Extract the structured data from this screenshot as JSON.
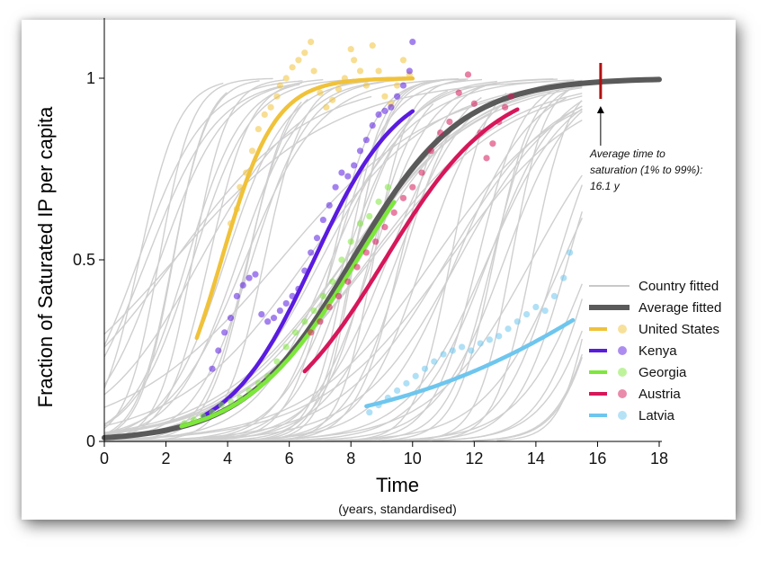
{
  "chart_data": {
    "type": "line",
    "xlabel": "Time",
    "xlabel_sub": "(years, standardised)",
    "ylabel": "Fraction of Saturated IP per capita",
    "xlim": [
      0,
      18
    ],
    "ylim": [
      0,
      1.12
    ],
    "x_ticks": [
      "0",
      "2",
      "4",
      "6",
      "8",
      "10",
      "12",
      "14",
      "16",
      "18"
    ],
    "x_tick_values": [
      0,
      2,
      4,
      6,
      8,
      10,
      12,
      14,
      16,
      18
    ],
    "y_ticks": [
      "0",
      "0.5",
      "1"
    ],
    "y_tick_values": [
      0,
      0.5,
      1
    ],
    "grid": false,
    "legend_position": "bottom-right",
    "legend": [
      {
        "label": "Country fitted",
        "color": "#c8c8c8",
        "dots": false
      },
      {
        "label": "Average fitted",
        "color": "#5a5a5a",
        "dots": false
      },
      {
        "label": "United States",
        "color": "#f0c23a",
        "dots": true
      },
      {
        "label": "Kenya",
        "color": "#5a1be0",
        "dots": true
      },
      {
        "label": "Georgia",
        "color": "#7de83a",
        "dots": true
      },
      {
        "label": "Austria",
        "color": "#d6175a",
        "dots": true
      },
      {
        "label": "Latvia",
        "color": "#6ec6ee",
        "dots": true
      }
    ],
    "annotation": {
      "lines": [
        "Average time to",
        "saturation (1% to 99%):",
        "16.1 y"
      ],
      "marker_x": 16.1,
      "marker_color": "#b01010"
    },
    "average_fitted": {
      "name": "Average fitted",
      "color": "#5a5a5a",
      "midpoint": 8.05,
      "rate": 0.57,
      "x_range": [
        0,
        18
      ]
    },
    "series": [
      {
        "name": "United States",
        "color": "#f0c23a",
        "midpoint": 3.8,
        "rate": 1.15,
        "fit_range": [
          3.0,
          10.0
        ],
        "points_x": [
          4.1,
          4.3,
          4.4,
          4.6,
          4.8,
          5.0,
          5.2,
          5.4,
          5.6,
          5.7,
          5.9,
          6.1,
          6.3,
          6.5,
          6.7,
          6.8,
          7.0,
          7.2,
          7.4,
          7.6,
          7.8,
          8.0,
          8.1,
          8.3,
          8.5,
          8.7,
          8.9,
          9.1,
          9.3,
          9.5,
          9.7,
          9.9
        ],
        "points_y": [
          0.6,
          0.64,
          0.7,
          0.74,
          0.8,
          0.86,
          0.9,
          0.92,
          0.95,
          0.98,
          1.0,
          1.03,
          1.05,
          1.07,
          1.1,
          1.02,
          0.96,
          0.92,
          0.94,
          0.97,
          1.0,
          1.08,
          1.05,
          1.02,
          0.98,
          1.09,
          1.02,
          0.95,
          0.93,
          0.98,
          1.05,
          1.01
        ]
      },
      {
        "name": "Kenya",
        "color": "#5a1be0",
        "midpoint": 6.8,
        "rate": 0.72,
        "fit_range": [
          3.2,
          10.0
        ],
        "points_x": [
          3.5,
          3.7,
          3.9,
          4.1,
          4.3,
          4.5,
          4.7,
          4.9,
          5.1,
          5.3,
          5.5,
          5.7,
          5.9,
          6.1,
          6.3,
          6.5,
          6.7,
          6.9,
          7.1,
          7.3,
          7.5,
          7.7,
          7.9,
          8.1,
          8.3,
          8.5,
          8.7,
          8.9,
          9.1,
          9.3,
          9.5,
          9.7,
          9.9,
          10.0
        ],
        "points_y": [
          0.2,
          0.25,
          0.3,
          0.34,
          0.4,
          0.43,
          0.45,
          0.46,
          0.35,
          0.33,
          0.34,
          0.36,
          0.38,
          0.4,
          0.42,
          0.47,
          0.52,
          0.56,
          0.61,
          0.65,
          0.7,
          0.74,
          0.73,
          0.76,
          0.8,
          0.83,
          0.87,
          0.9,
          0.91,
          0.92,
          0.95,
          0.98,
          1.02,
          1.1
        ]
      },
      {
        "name": "Georgia",
        "color": "#7de83a",
        "midpoint": 8.2,
        "rate": 0.55,
        "fit_range": [
          2.5,
          9.4
        ],
        "points_x": [
          2.6,
          2.9,
          3.2,
          3.5,
          3.8,
          4.1,
          4.4,
          4.7,
          5.0,
          5.3,
          5.6,
          5.9,
          6.2,
          6.5,
          6.8,
          7.1,
          7.4,
          7.7,
          8.0,
          8.3,
          8.6,
          8.9,
          9.2
        ],
        "points_y": [
          0.05,
          0.06,
          0.07,
          0.08,
          0.1,
          0.11,
          0.12,
          0.14,
          0.16,
          0.18,
          0.22,
          0.26,
          0.3,
          0.33,
          0.36,
          0.4,
          0.44,
          0.5,
          0.55,
          0.6,
          0.62,
          0.66,
          0.7
        ]
      },
      {
        "name": "Austria",
        "color": "#d6175a",
        "midpoint": 9.1,
        "rate": 0.55,
        "fit_range": [
          6.5,
          13.4
        ],
        "points_x": [
          6.7,
          7.0,
          7.3,
          7.6,
          7.9,
          8.2,
          8.5,
          8.8,
          9.1,
          9.4,
          9.7,
          10.0,
          10.3,
          10.6,
          10.9,
          11.2,
          11.5,
          11.8,
          12.0,
          12.2,
          12.4,
          12.6,
          12.8,
          13.0,
          13.2
        ],
        "points_y": [
          0.3,
          0.33,
          0.37,
          0.4,
          0.44,
          0.48,
          0.52,
          0.55,
          0.59,
          0.63,
          0.67,
          0.7,
          0.74,
          0.8,
          0.85,
          0.88,
          0.96,
          1.01,
          0.93,
          0.85,
          0.78,
          0.82,
          0.88,
          0.92,
          0.95
        ]
      },
      {
        "name": "Latvia",
        "color": "#6ec6ee",
        "midpoint": 18.2,
        "rate": 0.23,
        "fit_range": [
          8.5,
          15.2
        ],
        "points_x": [
          8.6,
          8.9,
          9.2,
          9.5,
          9.8,
          10.1,
          10.4,
          10.7,
          11.0,
          11.3,
          11.6,
          11.9,
          12.2,
          12.5,
          12.8,
          13.1,
          13.4,
          13.7,
          14.0,
          14.3,
          14.6,
          14.9,
          15.1
        ],
        "points_y": [
          0.08,
          0.1,
          0.12,
          0.14,
          0.16,
          0.18,
          0.2,
          0.22,
          0.24,
          0.25,
          0.26,
          0.25,
          0.27,
          0.28,
          0.29,
          0.31,
          0.33,
          0.35,
          0.37,
          0.36,
          0.4,
          0.45,
          0.52
        ]
      }
    ]
  }
}
